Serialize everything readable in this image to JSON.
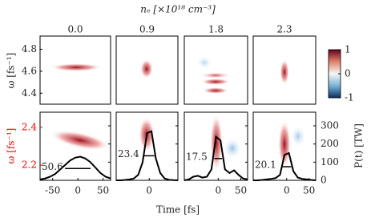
{
  "chart_data": {
    "type": "line",
    "title": "nₑ [×10¹⁸ cm⁻³]",
    "columns": [
      "0.0",
      "0.9",
      "1.8",
      "2.3"
    ],
    "top_ylabel": "ω [fs⁻¹]",
    "top_ylim": [
      4.3,
      4.92
    ],
    "top_yticks": [
      4.4,
      4.6,
      4.8
    ],
    "ylabel": "ω [fs⁻¹]",
    "ylim": [
      2.12,
      2.48
    ],
    "yticks": [
      2.2,
      2.4
    ],
    "y2label": "P(t) [TW]",
    "y2lim": [
      0,
      375
    ],
    "y2ticks": [
      0,
      100,
      200,
      300
    ],
    "xlabel": "Time [fs]",
    "xlim": [
      -75,
      65
    ],
    "x": [
      -75,
      -65,
      -55,
      -45,
      -35,
      -25,
      -15,
      -5,
      5,
      15,
      25,
      35,
      45,
      55,
      65
    ],
    "series": [
      {
        "color": "#000000",
        "axis": "y2",
        "fwhm": 50.6,
        "xticks": [
          -50,
          0,
          50
        ],
        "values": [
          5,
          10,
          20,
          35,
          60,
          85,
          110,
          125,
          130,
          120,
          100,
          70,
          40,
          20,
          10
        ]
      },
      {
        "color": "#000000",
        "axis": "y2",
        "fwhm": 23.4,
        "xticks": [
          0
        ],
        "values": [
          0,
          0,
          2,
          5,
          10,
          30,
          100,
          260,
          270,
          120,
          40,
          10,
          3,
          1,
          0
        ]
      },
      {
        "color": "#000000",
        "axis": "y2",
        "fwhm": 17.5,
        "xticks": [
          0,
          50
        ],
        "values": [
          0,
          5,
          20,
          25,
          15,
          20,
          60,
          240,
          220,
          60,
          40,
          55,
          30,
          10,
          5
        ]
      },
      {
        "color": "#000000",
        "axis": "y2",
        "fwhm": 20.1,
        "xticks": [
          0,
          50
        ],
        "values": [
          0,
          0,
          2,
          5,
          8,
          12,
          30,
          140,
          150,
          50,
          15,
          8,
          5,
          2,
          0
        ]
      }
    ],
    "colorbar": {
      "lim": [
        -1,
        1
      ],
      "ticks": [
        1,
        0,
        -1
      ]
    }
  }
}
